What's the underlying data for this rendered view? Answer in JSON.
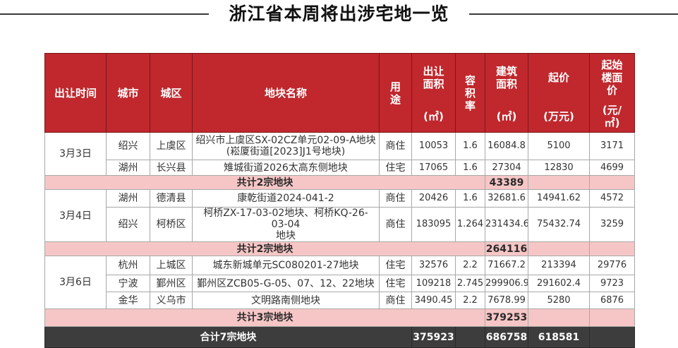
{
  "title": "浙江省本周将出涉宅地一览",
  "colors": {
    "header": "#c0282d",
    "subtotal": "#f6c6c6",
    "total": "#3d3d3d"
  },
  "header": {
    "date": "出让时间",
    "city": "城市",
    "district": "城区",
    "name": "地块名称",
    "use": "用途",
    "area": "出让面积",
    "area_unit": "(㎡)",
    "far": "容积率",
    "gfa": "建筑面积",
    "gfa_unit": "(㎡)",
    "price": "起价",
    "price_unit": "(万元)",
    "floor_price": "起始楼面价",
    "floor_price_unit": "(元/㎡)"
  },
  "groups": [
    {
      "date": "3月3日",
      "rows": [
        {
          "city": "绍兴",
          "district": "上虞区",
          "name": "绍兴市上虞区SX-02CZ单元02-09-A地块\n(崧厦街道[2023]J1号地块)",
          "use": "商住",
          "area": "10053",
          "far": "1.6",
          "gfa": "16084.8",
          "price": "5100",
          "floor_price": "3171"
        },
        {
          "city": "湖州",
          "district": "长兴县",
          "name": "雉城街道2026太高东侧地块",
          "use": "住宅",
          "area": "17065",
          "far": "1.6",
          "gfa": "27304",
          "price": "12830",
          "floor_price": "4699"
        }
      ],
      "subtotal_label": "共计2宗地块",
      "subtotal_gfa": "43389"
    },
    {
      "date": "3月4日",
      "rows": [
        {
          "city": "湖州",
          "district": "德清县",
          "name": "康乾街道2024-041-2",
          "use": "商住",
          "area": "20426",
          "far": "1.6",
          "gfa": "32681.6",
          "price": "14941.62",
          "floor_price": "4572"
        },
        {
          "city": "绍兴",
          "district": "柯桥区",
          "name": "柯桥ZX-17-03-02地块、柯桥KQ-26-03-04\n地块",
          "use": "商住",
          "area": "183095",
          "far": "1.264",
          "gfa": "231434.6",
          "price": "75432.74",
          "floor_price": "3259"
        }
      ],
      "subtotal_label": "共计2宗地块",
      "subtotal_gfa": "264116"
    },
    {
      "date": "3月6日",
      "rows": [
        {
          "city": "杭州",
          "district": "上城区",
          "name": "城东新城单元SC080201-27地块",
          "use": "住宅",
          "area": "32576",
          "far": "2.2",
          "gfa": "71667.2",
          "price": "213394",
          "floor_price": "29776"
        },
        {
          "city": "宁波",
          "district": "鄞州区",
          "name": "鄞州区ZCB05-G-05、07、12、22地块",
          "use": "住宅",
          "area": "109218",
          "far": "2.745",
          "gfa": "299906.9",
          "price": "291602.4",
          "floor_price": "9723"
        },
        {
          "city": "金华",
          "district": "义乌市",
          "name": "文明路南侧地块",
          "use": "商住",
          "area": "3490.45",
          "far": "2.2",
          "gfa": "7678.99",
          "price": "5280",
          "floor_price": "6876"
        }
      ],
      "subtotal_label": "共计3宗地块",
      "subtotal_gfa": "379253"
    }
  ],
  "total": {
    "label": "合计7宗地块",
    "area": "375923",
    "gfa": "686758",
    "price": "618581"
  }
}
